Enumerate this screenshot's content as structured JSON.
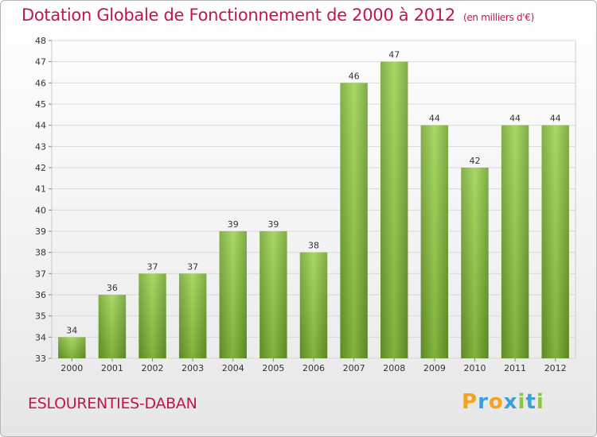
{
  "chart_data": {
    "type": "bar",
    "title": "Dotation Globale de Fonctionnement de 2000 à 2012",
    "subtitle": "(en milliers d'€)",
    "categories": [
      "2000",
      "2001",
      "2002",
      "2003",
      "2004",
      "2005",
      "2006",
      "2007",
      "2008",
      "2009",
      "2010",
      "2011",
      "2012"
    ],
    "values": [
      34,
      36,
      37,
      37,
      39,
      39,
      38,
      46,
      47,
      44,
      42,
      44,
      44
    ],
    "ylim": [
      33,
      48
    ],
    "yticks": [
      33,
      34,
      35,
      36,
      37,
      38,
      39,
      40,
      41,
      42,
      43,
      44,
      45,
      46,
      47,
      48
    ],
    "grid": true,
    "bar_color": "#8cc63f"
  },
  "commune": "ESLOURENTIES-DABAN",
  "logo": {
    "text": "Proxiti",
    "letters": [
      "P",
      "r",
      "o",
      "x",
      "i",
      "t",
      "i"
    ],
    "colors": [
      "#f7a21b",
      "#3aa0d8",
      "#f7a21b",
      "#3aa0d8",
      "#8cc63f",
      "#3aa0d8",
      "#8cc63f"
    ]
  }
}
